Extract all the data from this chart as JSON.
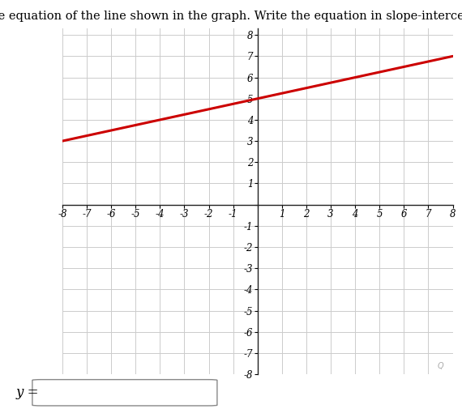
{
  "title": "Write the equation of the line shown in the graph. Write the equation in slope-intercept form.",
  "title_fontsize": 10.5,
  "xmin": -8,
  "xmax": 8,
  "ymin": -8,
  "ymax": 8,
  "slope": 0.25,
  "intercept": 5,
  "line_color": "#cc0000",
  "line_width": 2.2,
  "line_x_start": -8,
  "line_x_end": 8,
  "grid_color": "#cccccc",
  "axis_color": "#222222",
  "tick_fontsize": 8.5,
  "answer_label": "y =",
  "background_color": "#ffffff"
}
